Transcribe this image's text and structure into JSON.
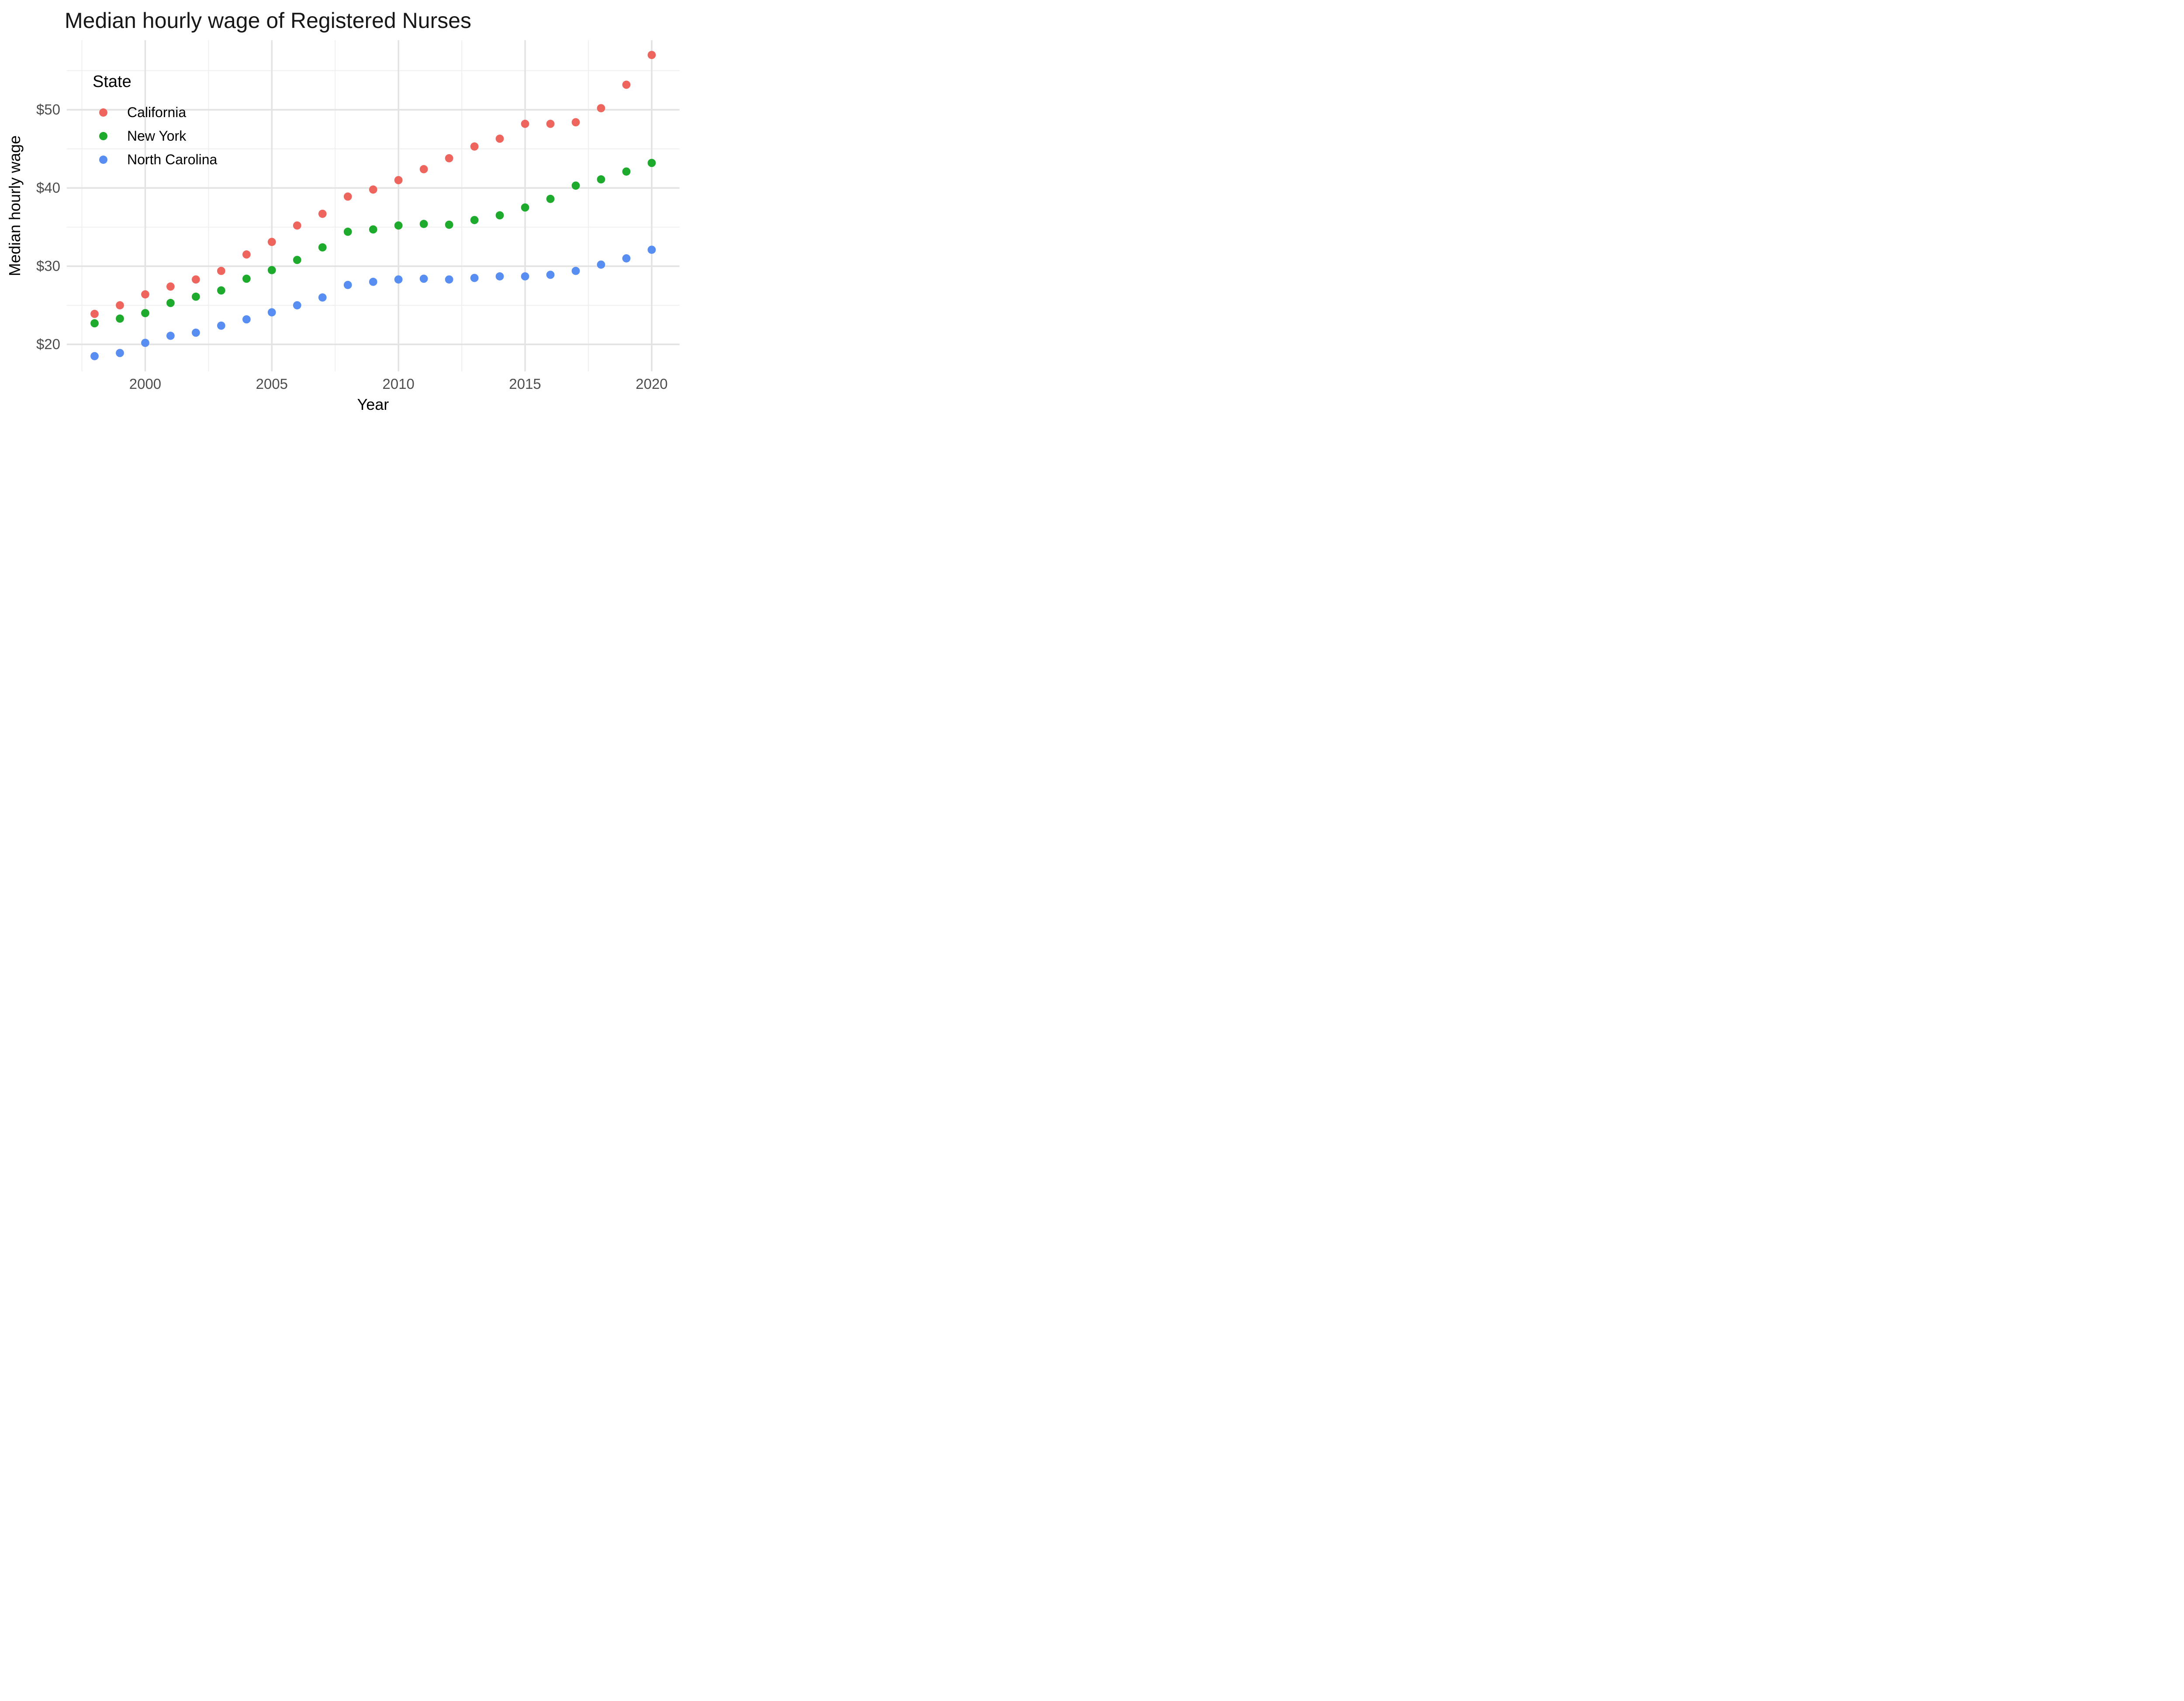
{
  "figure": {
    "title": "Median hourly wage of Registered Nurses"
  },
  "chart_data": {
    "type": "scatter",
    "title": "Median hourly wage of Registered Nurses",
    "xlabel": "Year",
    "ylabel": "Median hourly wage",
    "legend": {
      "title": "State",
      "position": "inside top-left"
    },
    "x": [
      1998,
      1999,
      2000,
      2001,
      2002,
      2003,
      2004,
      2005,
      2006,
      2007,
      2008,
      2009,
      2010,
      2011,
      2012,
      2013,
      2014,
      2015,
      2016,
      2017,
      2018,
      2019,
      2020
    ],
    "series": [
      {
        "name": "California",
        "color": "#ee655e",
        "values": [
          23.9,
          25.0,
          26.4,
          27.4,
          28.3,
          29.4,
          31.5,
          33.1,
          35.2,
          36.7,
          38.9,
          39.8,
          41.0,
          42.4,
          43.8,
          45.3,
          46.3,
          48.2,
          48.2,
          48.4,
          50.2,
          53.2,
          57.0
        ]
      },
      {
        "name": "New York",
        "color": "#1eaa2c",
        "values": [
          22.7,
          23.3,
          24.0,
          25.3,
          26.1,
          26.9,
          28.4,
          29.5,
          30.8,
          32.4,
          34.4,
          34.7,
          35.2,
          35.4,
          35.3,
          35.9,
          36.5,
          37.5,
          38.6,
          40.3,
          41.1,
          42.1,
          43.2
        ]
      },
      {
        "name": "North Carolina",
        "color": "#588df2",
        "values": [
          18.5,
          18.9,
          20.2,
          21.1,
          21.5,
          22.4,
          23.2,
          24.1,
          25.0,
          26.0,
          27.6,
          28.0,
          28.3,
          28.4,
          28.3,
          28.5,
          28.7,
          28.7,
          28.9,
          29.4,
          30.2,
          31.0,
          32.1
        ]
      }
    ],
    "x_ticks": {
      "values": [
        2000,
        2005,
        2010,
        2015,
        2020
      ],
      "labels": [
        "2000",
        "2005",
        "2010",
        "2015",
        "2020"
      ]
    },
    "y_ticks": {
      "values": [
        20,
        30,
        40,
        50
      ],
      "labels": [
        "$20",
        "$30",
        "$40",
        "$50"
      ]
    },
    "x_minor": [
      1997.5,
      2002.5,
      2007.5,
      2012.5,
      2017.5
    ],
    "y_minor": [
      25,
      35,
      45,
      55
    ],
    "xlim": [
      1996.9,
      2021.1
    ],
    "ylim": [
      16.55,
      58.89
    ],
    "grid": "on",
    "legend_position": "inside top-left",
    "background_color": "#ffffff",
    "major_grid_color": "#e3e3e3",
    "minor_grid_color": "#efefef",
    "tick_text_color": "#4d4d4d",
    "point_radius_px": 9.4
  }
}
